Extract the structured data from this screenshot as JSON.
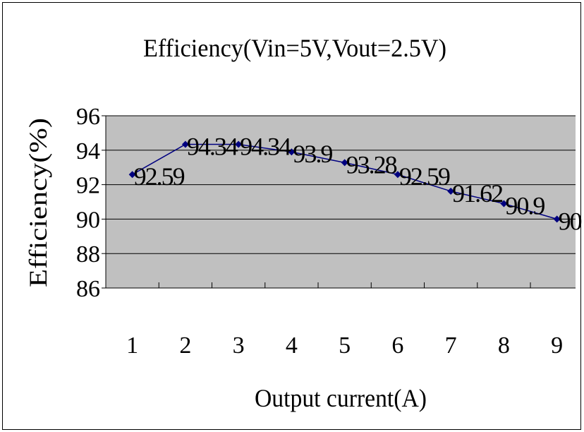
{
  "chart_data": {
    "type": "line",
    "title": "Efficiency(Vin=5V,Vout=2.5V)",
    "xlabel": "Output current(A)",
    "ylabel": "Efficiency(%)",
    "categories": [
      "1",
      "2",
      "3",
      "4",
      "5",
      "6",
      "7",
      "8",
      "9"
    ],
    "series": [
      {
        "values": [
          92.59,
          94.34,
          94.34,
          93.9,
          93.28,
          92.59,
          91.62,
          90.9,
          90
        ],
        "data_labels": [
          "92.59",
          "94.34",
          "94.34",
          "93.9",
          "93.28",
          "92.59",
          "91.62",
          "90.9",
          "90"
        ]
      }
    ],
    "ylim": [
      86,
      96
    ],
    "yticks": [
      "86",
      "88",
      "90",
      "92",
      "94",
      "96"
    ],
    "grid": true,
    "legend": "none",
    "colors": {
      "plot_bg": "#c0c0c0",
      "line": "#000080",
      "marker": "#000080"
    }
  }
}
